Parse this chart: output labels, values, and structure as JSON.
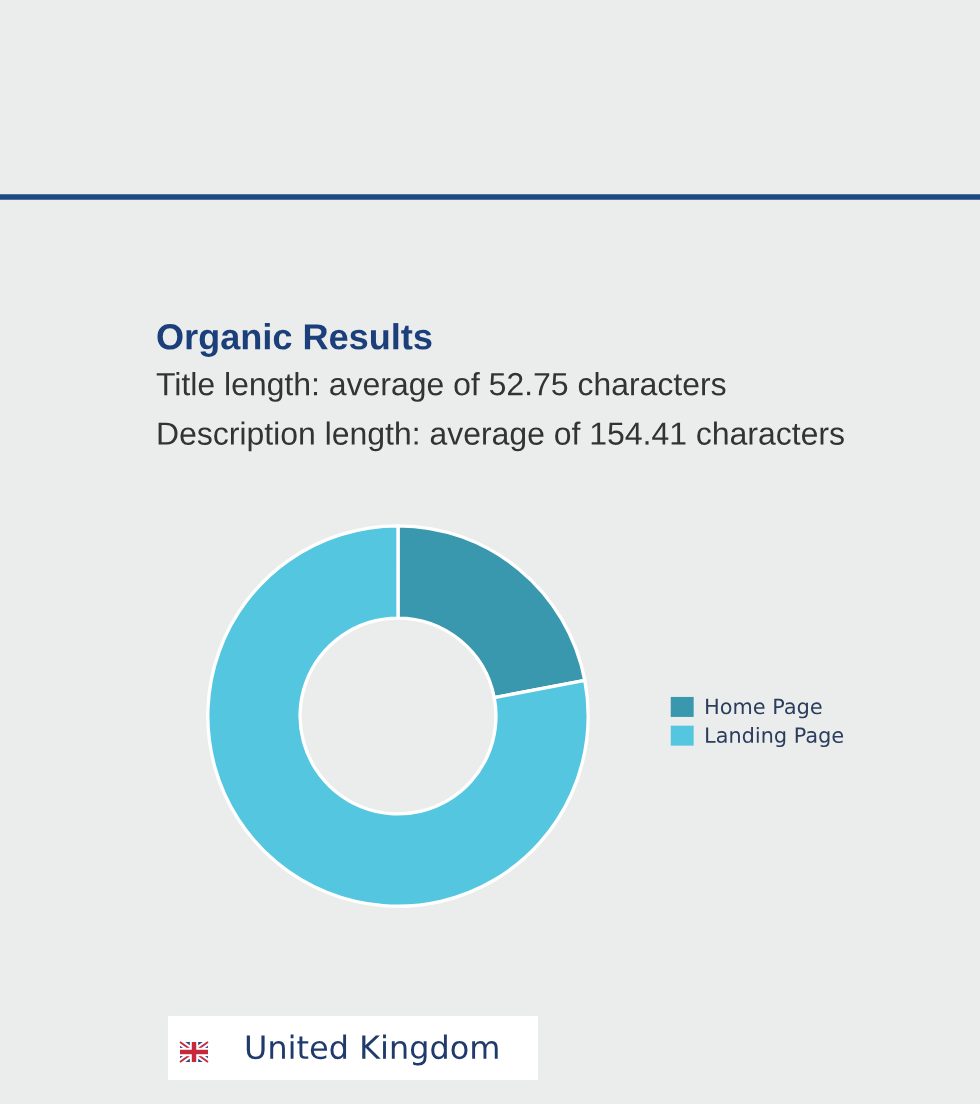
{
  "chart_data": {
    "type": "donut",
    "title": "Organic Results",
    "subtitle": "Title length: average of 52.75 characters\nDescription length: average of 154.41 characters",
    "categories": [
      "Home Page",
      "Landing Page"
    ],
    "values": [
      22,
      78
    ],
    "colors": [
      "#3a98ae",
      "#55c6df"
    ],
    "legend": "right",
    "annotations": [
      "United Kingdom"
    ]
  }
}
